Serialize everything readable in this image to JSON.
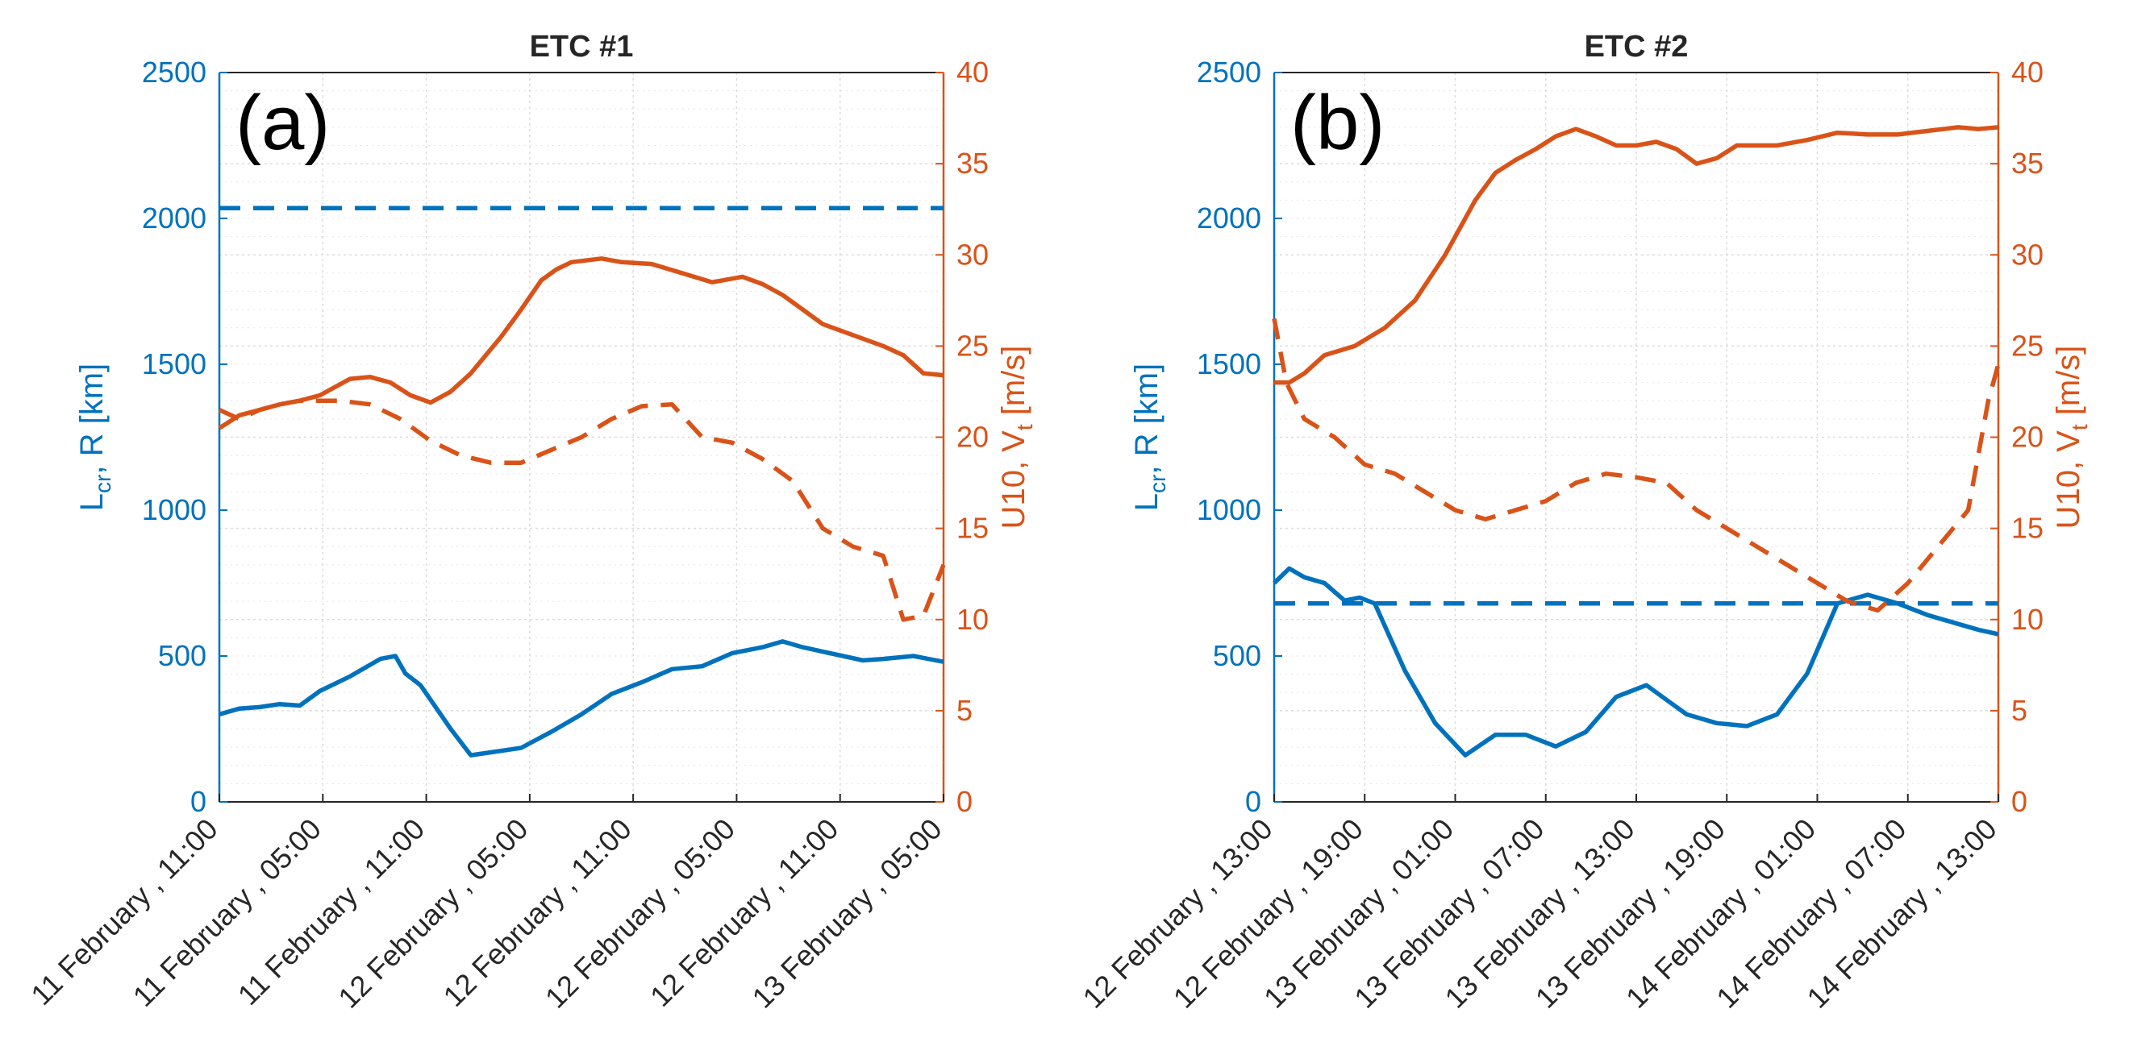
{
  "colors": {
    "left": "#0072BD",
    "right": "#D95319",
    "grid": "#dcdcdc",
    "axis": "#262626"
  },
  "chart_data": [
    {
      "type": "line",
      "title": "ETC #1",
      "panel_label": "(a)",
      "ylabel_left": {
        "main": "L",
        "sub1": "cr",
        "rest": ", R [km]"
      },
      "ylabel_right": {
        "main": "U10, V",
        "sub1": "t",
        "rest": " [m/s]"
      },
      "ylim_left": [
        0,
        2500
      ],
      "ylim_right": [
        0,
        40
      ],
      "yticks_left": [
        "0",
        "500",
        "1000",
        "1500",
        "2000",
        "2500"
      ],
      "yticks_right": [
        "0",
        "5",
        "10",
        "15",
        "20",
        "25",
        "30",
        "35",
        "40"
      ],
      "xlim": [
        0,
        7.2
      ],
      "xticks": [
        "11 February , 11:00",
        "11 February , 05:00",
        "11 February , 11:00",
        "12 February , 05:00",
        "12 February , 11:00",
        "12 February , 05:00",
        "12 February , 11:00",
        "13 February , 05:00"
      ],
      "series": [
        {
          "name": "R",
          "axis": "left",
          "style": "solid",
          "x": [
            0,
            0.2,
            0.4,
            0.6,
            0.8,
            1.0,
            1.3,
            1.6,
            1.75,
            1.85,
            2.0,
            2.3,
            2.5,
            2.7,
            3.0,
            3.3,
            3.6,
            3.9,
            4.2,
            4.5,
            4.8,
            5.1,
            5.4,
            5.6,
            5.8,
            6.0,
            6.2,
            6.4,
            6.6,
            6.9,
            7.2
          ],
          "values": [
            300,
            320,
            325,
            335,
            330,
            380,
            430,
            490,
            500,
            440,
            400,
            250,
            160,
            170,
            185,
            240,
            300,
            370,
            410,
            455,
            465,
            510,
            530,
            550,
            530,
            515,
            500,
            485,
            490,
            500,
            480
          ]
        },
        {
          "name": "Lcr",
          "axis": "left",
          "style": "dashed",
          "x": [
            0,
            7.2
          ],
          "values": [
            2035,
            2035
          ]
        },
        {
          "name": "U10",
          "axis": "right",
          "style": "solid",
          "x": [
            0,
            0.2,
            0.4,
            0.6,
            0.8,
            1.0,
            1.3,
            1.5,
            1.7,
            1.9,
            2.1,
            2.3,
            2.5,
            2.8,
            3.0,
            3.2,
            3.35,
            3.5,
            3.8,
            4.0,
            4.3,
            4.6,
            4.9,
            5.2,
            5.4,
            5.6,
            5.8,
            6.0,
            6.2,
            6.4,
            6.6,
            6.8,
            7.0,
            7.2
          ],
          "values": [
            20.5,
            21.2,
            21.5,
            21.8,
            22.0,
            22.3,
            23.2,
            23.3,
            23.0,
            22.3,
            21.9,
            22.5,
            23.5,
            25.5,
            27.0,
            28.6,
            29.2,
            29.6,
            29.8,
            29.6,
            29.5,
            29.0,
            28.5,
            28.8,
            28.4,
            27.8,
            27.0,
            26.2,
            25.8,
            25.4,
            25.0,
            24.5,
            23.5,
            23.4
          ]
        },
        {
          "name": "Vt",
          "axis": "right",
          "style": "dashed",
          "x": [
            0,
            0.2,
            0.4,
            0.6,
            0.8,
            1.0,
            1.2,
            1.5,
            1.8,
            2.1,
            2.4,
            2.7,
            3.0,
            3.3,
            3.6,
            3.9,
            4.2,
            4.5,
            4.8,
            5.1,
            5.4,
            5.7,
            6.0,
            6.3,
            6.6,
            6.8,
            7.0,
            7.2
          ],
          "values": [
            21.5,
            21.0,
            21.5,
            21.8,
            22.0,
            22.0,
            22.0,
            21.8,
            21.0,
            19.8,
            19.0,
            18.6,
            18.6,
            19.3,
            20.0,
            21.0,
            21.7,
            21.8,
            20.0,
            19.7,
            18.8,
            17.6,
            15.0,
            14.0,
            13.5,
            10.0,
            10.2,
            13.0
          ]
        }
      ]
    },
    {
      "type": "line",
      "title": "ETC #2",
      "panel_label": "(b)",
      "ylabel_left": {
        "main": "L",
        "sub1": "cr",
        "rest": ", R [km]"
      },
      "ylabel_right": {
        "main": "U10, V",
        "sub1": "t",
        "rest": " [m/s]"
      },
      "ylim_left": [
        0,
        2500
      ],
      "ylim_right": [
        0,
        40
      ],
      "yticks_left": [
        "0",
        "500",
        "1000",
        "1500",
        "2000",
        "2500"
      ],
      "yticks_right": [
        "0",
        "5",
        "10",
        "15",
        "20",
        "25",
        "30",
        "35",
        "40"
      ],
      "xlim": [
        0,
        7.2
      ],
      "xticks": [
        "12 February , 13:00",
        "12 February , 19:00",
        "13 February , 01:00",
        "13 February , 07:00",
        "13 February , 13:00",
        "13 February , 19:00",
        "14 February , 01:00",
        "14 February , 07:00",
        "14 February , 13:00"
      ],
      "series": [
        {
          "name": "R",
          "axis": "left",
          "style": "solid",
          "x": [
            0,
            0.15,
            0.3,
            0.5,
            0.7,
            0.85,
            1.0,
            1.3,
            1.6,
            1.9,
            2.2,
            2.5,
            2.8,
            3.1,
            3.4,
            3.7,
            3.9,
            4.1,
            4.4,
            4.7,
            5.0,
            5.3,
            5.6,
            5.9,
            6.2,
            6.5,
            6.8,
            6.9,
            7.0,
            7.2
          ],
          "values": [
            750,
            800,
            770,
            750,
            690,
            700,
            680,
            450,
            270,
            160,
            230,
            230,
            190,
            240,
            360,
            400,
            350,
            300,
            270,
            260,
            300,
            440,
            680,
            710,
            680,
            640,
            610,
            600,
            590,
            575
          ]
        },
        {
          "name": "Lcr",
          "axis": "left",
          "style": "dashed",
          "x": [
            0,
            7.2
          ],
          "values": [
            680,
            680
          ]
        },
        {
          "name": "U10",
          "axis": "right",
          "style": "solid",
          "x": [
            0,
            0.15,
            0.3,
            0.5,
            0.8,
            1.1,
            1.4,
            1.7,
            2.0,
            2.2,
            2.4,
            2.6,
            2.8,
            3.0,
            3.2,
            3.4,
            3.6,
            3.8,
            4.0,
            4.2,
            4.4,
            4.6,
            4.8,
            5.0,
            5.3,
            5.6,
            5.9,
            6.2,
            6.5,
            6.8,
            7.0,
            7.2
          ],
          "values": [
            23.0,
            23.0,
            23.5,
            24.5,
            25.0,
            26.0,
            27.5,
            30.0,
            33.0,
            34.5,
            35.2,
            35.8,
            36.5,
            36.9,
            36.5,
            36.0,
            36.0,
            36.2,
            35.8,
            35.0,
            35.3,
            36.0,
            36.0,
            36.0,
            36.3,
            36.7,
            36.6,
            36.6,
            36.8,
            37.0,
            36.9,
            37.0
          ]
        },
        {
          "name": "Vt",
          "axis": "right",
          "style": "dashed",
          "x": [
            0,
            0.12,
            0.3,
            0.6,
            0.9,
            1.2,
            1.5,
            1.8,
            2.1,
            2.4,
            2.7,
            3.0,
            3.3,
            3.6,
            3.9,
            4.2,
            4.5,
            4.8,
            5.1,
            5.4,
            5.7,
            6.0,
            6.3,
            6.6,
            6.9,
            7.1,
            7.2
          ],
          "values": [
            26.5,
            23.0,
            21.0,
            20.0,
            18.5,
            18.0,
            17.0,
            16.0,
            15.5,
            16.0,
            16.5,
            17.5,
            18.0,
            17.8,
            17.5,
            16.0,
            15.0,
            14.0,
            13.0,
            12.0,
            11.0,
            10.5,
            12.0,
            14.0,
            16.0,
            22.0,
            24.0
          ]
        }
      ]
    }
  ]
}
